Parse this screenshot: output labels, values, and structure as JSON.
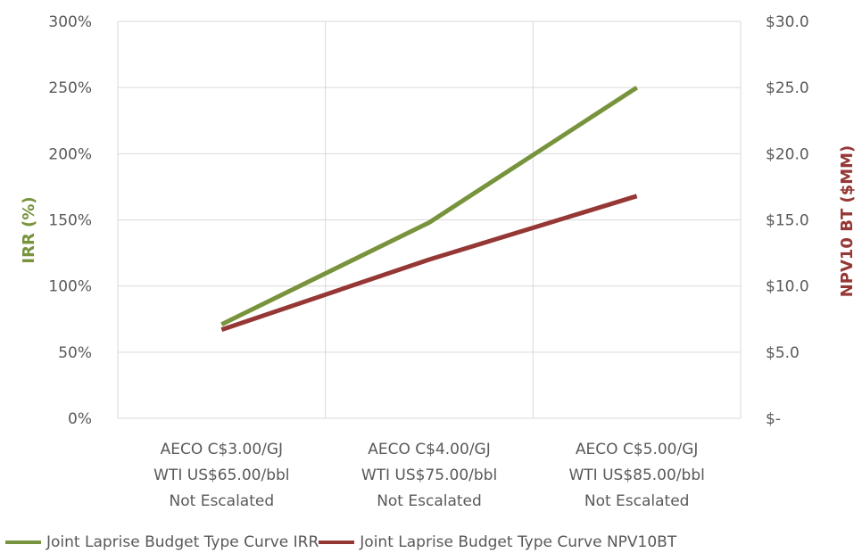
{
  "chart_data": {
    "type": "line",
    "categories": [
      [
        "AECO C$3.00/GJ",
        "WTI US$65.00/bbl",
        "Not Escalated"
      ],
      [
        "AECO C$4.00/GJ",
        "WTI US$75.00/bbl",
        "Not Escalated"
      ],
      [
        "AECO C$5.00/GJ",
        "WTI US$85.00/bbl",
        "Not Escalated"
      ]
    ],
    "y_left": {
      "label": "IRR (%)",
      "ylim": [
        0,
        300
      ],
      "ticks": [
        0,
        50,
        100,
        150,
        200,
        250,
        300
      ],
      "tick_labels": [
        "0%",
        "50%",
        "100%",
        "150%",
        "200%",
        "250%",
        "300%"
      ],
      "color": "#77933c"
    },
    "y_right": {
      "label": "NPV10 BT ($MM)",
      "ylim": [
        0,
        30
      ],
      "ticks": [
        0,
        5,
        10,
        15,
        20,
        25,
        30
      ],
      "tick_labels": [
        "$-",
        "$5.0",
        "$10.0",
        "$15.0",
        "$20.0",
        "$25.0",
        "$30.0"
      ],
      "color": "#953735"
    },
    "series": [
      {
        "name": "Joint Laprise Budget Type Curve IRR",
        "axis": "left",
        "color": "#77933c",
        "values": [
          71,
          148,
          250
        ]
      },
      {
        "name": "Joint Laprise Budget Type Curve NPV10BT",
        "axis": "right",
        "color": "#953735",
        "values": [
          6.7,
          12.0,
          16.8
        ]
      }
    ],
    "grid": true,
    "legend_position": "bottom"
  }
}
